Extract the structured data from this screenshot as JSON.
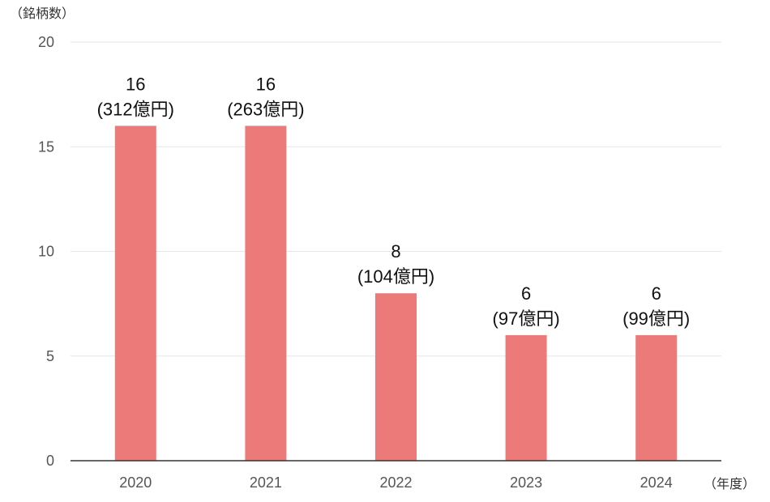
{
  "chart_data": {
    "type": "bar",
    "y_unit_label": "（銘柄数）",
    "x_unit_label": "（年度）",
    "categories": [
      "2020",
      "2021",
      "2022",
      "2023",
      "2024"
    ],
    "series": [
      {
        "values": [
          16,
          16,
          8,
          6,
          6
        ],
        "data_labels": [
          [
            "16",
            "(312億円)"
          ],
          [
            "16",
            "(263億円)"
          ],
          [
            "8",
            "(104億円)"
          ],
          [
            "6",
            "(97億円)"
          ],
          [
            "6",
            "(99億円)"
          ]
        ]
      }
    ],
    "ylim": [
      0,
      20
    ],
    "yticks": [
      "0",
      "5",
      "10",
      "15",
      "20"
    ],
    "grid": true,
    "bar_color": "#ec7a79",
    "grid_color": "#e6e6e6",
    "axis_color": "#333333"
  }
}
